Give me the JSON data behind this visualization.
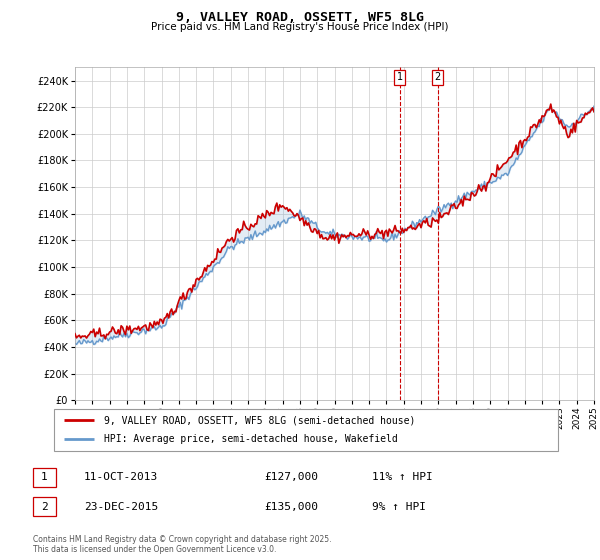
{
  "title": "9, VALLEY ROAD, OSSETT, WF5 8LG",
  "subtitle": "Price paid vs. HM Land Registry's House Price Index (HPI)",
  "legend_line1": "9, VALLEY ROAD, OSSETT, WF5 8LG (semi-detached house)",
  "legend_line2": "HPI: Average price, semi-detached house, Wakefield",
  "footnote": "Contains HM Land Registry data © Crown copyright and database right 2025.\nThis data is licensed under the Open Government Licence v3.0.",
  "transaction1_date": "11-OCT-2013",
  "transaction1_price": "£127,000",
  "transaction1_hpi": "11% ↑ HPI",
  "transaction2_date": "23-DEC-2015",
  "transaction2_price": "£135,000",
  "transaction2_hpi": "9% ↑ HPI",
  "red_color": "#cc0000",
  "blue_color": "#6699cc",
  "grid_color": "#cccccc",
  "ylim": [
    0,
    250000
  ],
  "year_start": 1995,
  "year_end": 2025,
  "transaction1_year": 2013.78,
  "transaction2_year": 2015.97
}
